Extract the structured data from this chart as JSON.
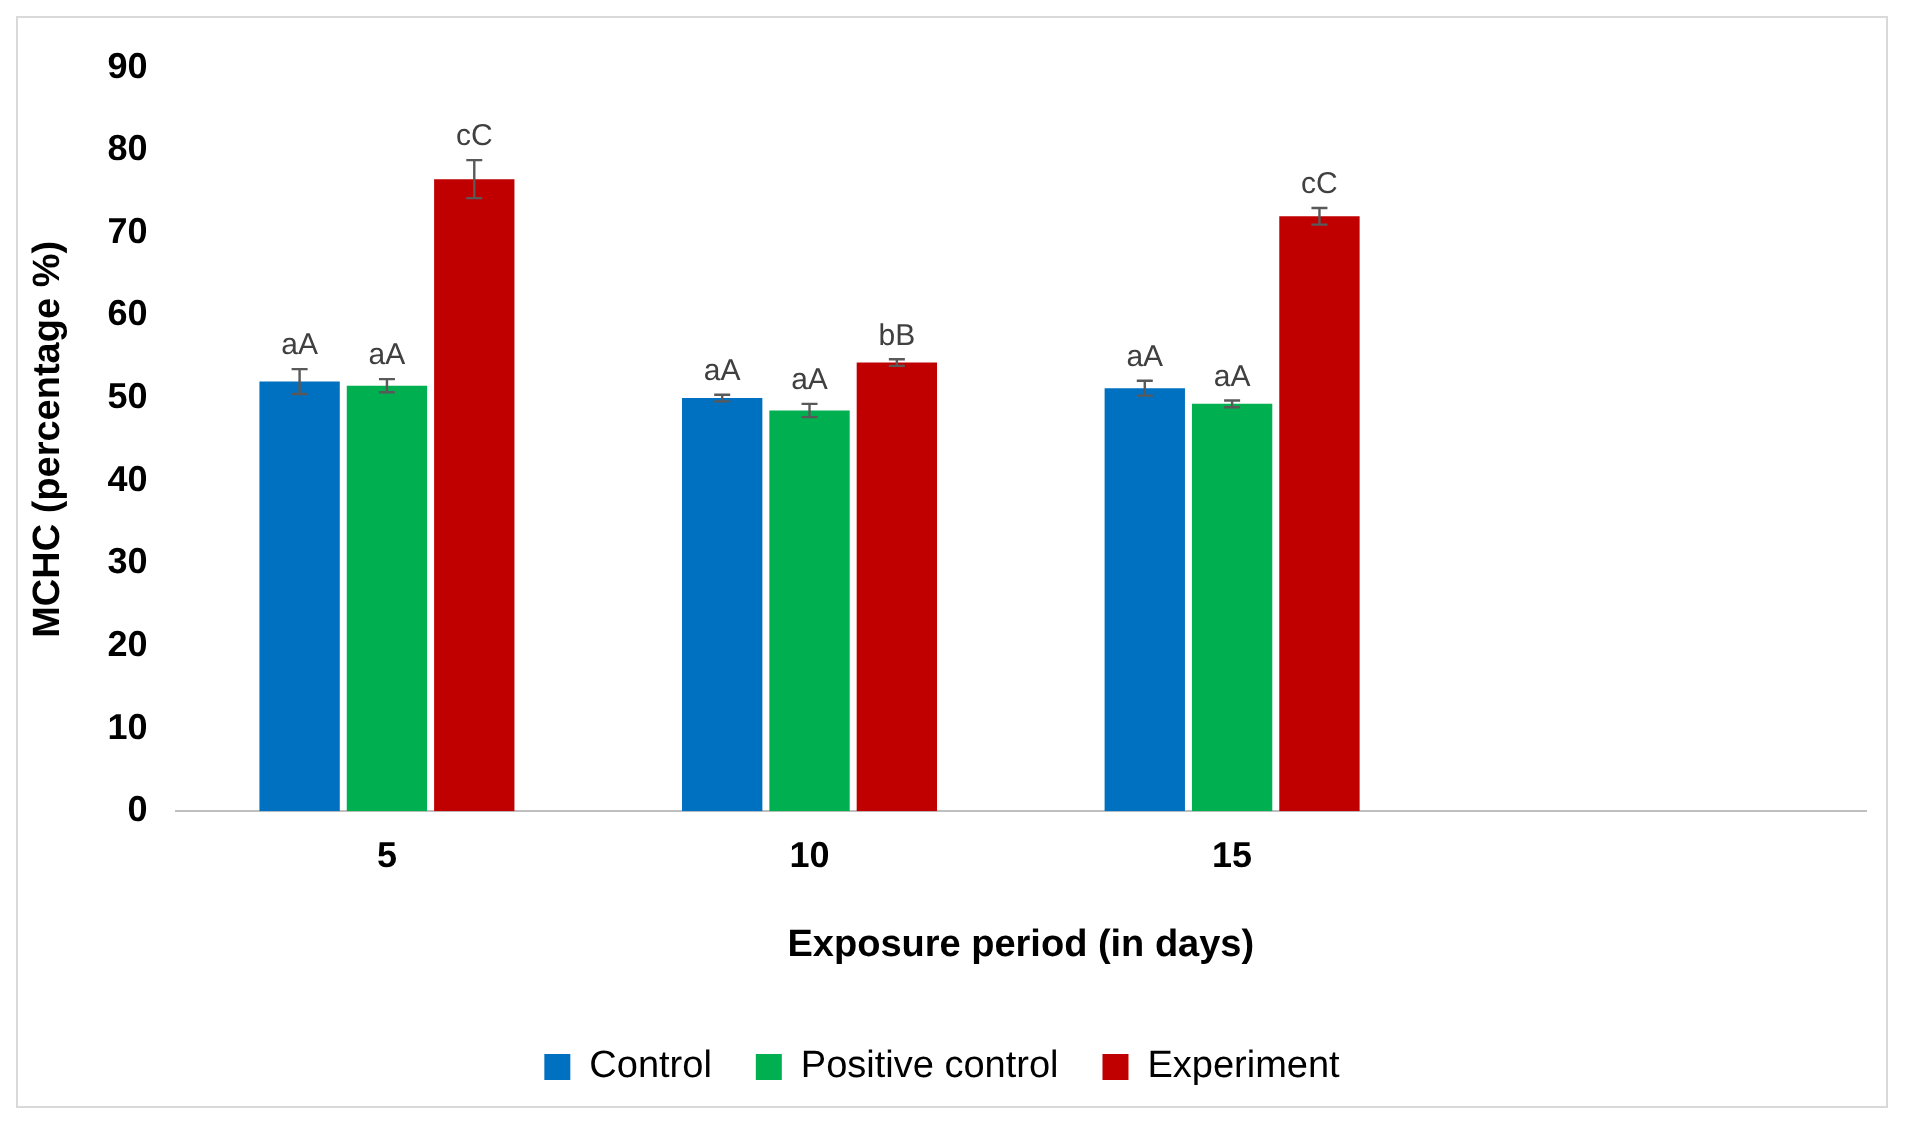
{
  "chart_data": {
    "type": "bar",
    "xlabel": "Exposure period (in days)",
    "ylabel": "MCHC (percentage %)",
    "categories": [
      "5",
      "10",
      "15",
      null
    ],
    "ylim": [
      0,
      90
    ],
    "yticks": [
      0,
      10,
      20,
      30,
      40,
      50,
      60,
      70,
      80,
      90
    ],
    "grid": false,
    "legend": "bottom",
    "series": [
      {
        "name": "Control",
        "color": "#0070c0",
        "values": [
          52,
          50,
          51.2,
          null
        ],
        "errors": [
          1.5,
          0.4,
          0.9,
          null
        ],
        "value_labels": [
          "aA",
          "aA",
          "aA",
          null
        ]
      },
      {
        "name": "Positive control",
        "color": "#00b050",
        "values": [
          51.5,
          48.5,
          49.3,
          null
        ],
        "errors": [
          0.8,
          0.8,
          0.4,
          null
        ],
        "value_labels": [
          "aA",
          "aA",
          "aA",
          null
        ]
      },
      {
        "name": "Experiment",
        "color": "#c00000",
        "values": [
          76.5,
          54.3,
          72,
          null
        ],
        "errors": [
          2.3,
          0.4,
          1,
          null
        ],
        "value_labels": [
          "cC",
          "bB",
          "cC",
          null
        ]
      }
    ]
  }
}
